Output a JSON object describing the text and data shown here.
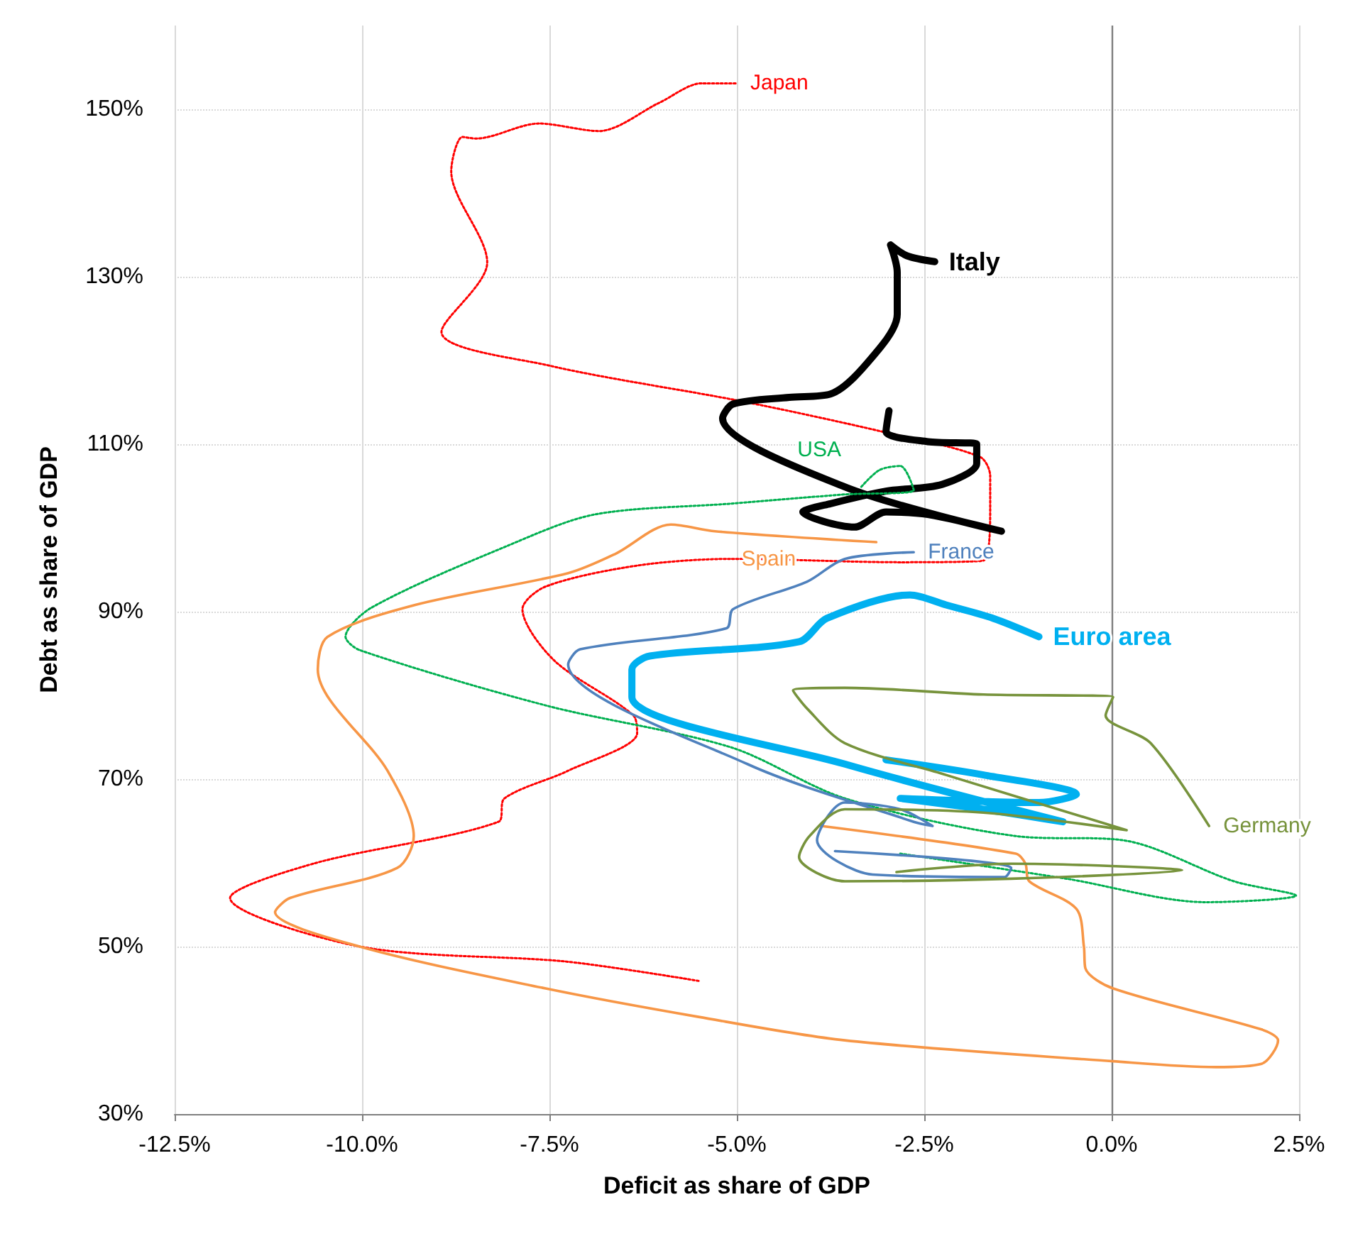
{
  "chart_data": {
    "type": "line",
    "xlabel": "Deficit as share of GDP",
    "ylabel": "Debt as share of GDP",
    "xlim": [
      -12.5,
      2.5
    ],
    "ylim": [
      30,
      160
    ],
    "xticks": [
      {
        "value": -12.5,
        "label": "-12.5%"
      },
      {
        "value": -10,
        "label": "-10.0%"
      },
      {
        "value": -7.5,
        "label": "-7.5%"
      },
      {
        "value": -5,
        "label": "-5.0%"
      },
      {
        "value": -2.5,
        "label": "-2.5%"
      },
      {
        "value": 0,
        "label": "0.0%"
      },
      {
        "value": 2.5,
        "label": "2.5%"
      }
    ],
    "yticks": [
      {
        "value": 30,
        "label": "30%"
      },
      {
        "value": 50,
        "label": "50%"
      },
      {
        "value": 70,
        "label": "70%"
      },
      {
        "value": 90,
        "label": "90%"
      },
      {
        "value": 110,
        "label": "110%"
      },
      {
        "value": 130,
        "label": "130%"
      },
      {
        "value": 150,
        "label": "150%"
      }
    ],
    "grid": true,
    "legend": false,
    "ref_lines": [
      {
        "axis": "x",
        "value": 0,
        "color": "#7f7f7f"
      }
    ],
    "series": [
      {
        "name": "Japan",
        "color": "#ff0000",
        "line_style": "dotted",
        "x": [
          -5.51,
          -7.27,
          -10.03,
          -11.76,
          -10.65,
          -8.18,
          -8.1,
          -7.25,
          -6.33,
          -6.38,
          -7.44,
          -7.86,
          -7.55,
          -6.33,
          -5.08,
          -2.82,
          -1.71,
          -1.62,
          -1.62,
          -1.76,
          -3.06,
          -4.92,
          -7.51,
          -8.94,
          -8.33,
          -8.81,
          -8.66,
          -8.48,
          -7.64,
          -6.84,
          -6.03,
          -5.47,
          -5.01
        ],
        "values": [
          45.9,
          48.2,
          50,
          55.8,
          59.9,
          64.9,
          67.7,
          71,
          75.5,
          77.6,
          84.2,
          90.3,
          93,
          95.5,
          96.3,
          95.9,
          96.1,
          102.4,
          106.2,
          108.5,
          111.5,
          115.1,
          119.4,
          123.4,
          131.7,
          142.6,
          146.7,
          146.5,
          148.3,
          147.4,
          150.8,
          153.1,
          153.1
        ]
      },
      {
        "name": "Italy",
        "color": "#000000",
        "line_style": "solid",
        "x": [
          -2.97,
          -3.01,
          -2.45,
          -1.8,
          -1.8,
          -2.26,
          -3.01,
          -3.75,
          -4.12,
          -3.43,
          -3.01,
          -2.45,
          -1.47,
          -3.56,
          -5.19,
          -5.05,
          -4.3,
          -3.75,
          -3.1,
          -2.86,
          -2.86,
          -2.95,
          -2.73,
          -2.36
        ],
        "values": [
          114,
          111.5,
          110.3,
          110,
          107.7,
          105.2,
          104.4,
          102.9,
          101.9,
          100.1,
          101.9,
          101.6,
          99.6,
          104.9,
          113.1,
          114.8,
          115.6,
          116,
          121.4,
          125.5,
          130.5,
          133.8,
          132.5,
          131.8
        ]
      },
      {
        "name": "USA",
        "color": "#00b050",
        "line_style": "dotted",
        "x": [
          -2.82,
          -0.6,
          1.26,
          2.46,
          1.63,
          0.15,
          -1.28,
          -3.56,
          -5.08,
          -7.55,
          -10.03,
          -10.22,
          -9.87,
          -8.05,
          -6.9,
          -5.08,
          -3.56,
          -2.64,
          -2.82,
          -3.1,
          -3.34
        ],
        "values": [
          61.1,
          58.1,
          55.3,
          56.1,
          57.8,
          62.7,
          63.2,
          67.7,
          73.8,
          78.8,
          85.4,
          87,
          90.5,
          97.9,
          101.6,
          102.9,
          104,
          104.5,
          107.4,
          106.9,
          104.9
        ]
      },
      {
        "name": "Spain",
        "color": "#f79646",
        "line_style": "solid",
        "x": [
          -3.88,
          -1.28,
          -1.15,
          -1.1,
          -0.47,
          -0.37,
          -0.35,
          0.02,
          2,
          2.22,
          2,
          1.39,
          0.02,
          -3.56,
          -5.51,
          -7.55,
          -10.03,
          -11.16,
          -10.96,
          -9.53,
          -9.31,
          -9.66,
          -10.59,
          -10.46,
          -9.29,
          -7.25,
          -6.62,
          -5.88,
          -5.29,
          -3.14
        ],
        "values": [
          64.4,
          61.1,
          59.9,
          57.8,
          54.5,
          50,
          47.4,
          45,
          40.1,
          38.8,
          36,
          35.6,
          36.3,
          38.8,
          41.6,
          45,
          50,
          54.1,
          55.8,
          59.4,
          63.2,
          71,
          83.1,
          87,
          90.8,
          94.6,
          96.9,
          100.4,
          99.6,
          98.3
        ]
      },
      {
        "name": "France",
        "color": "#4f81bd",
        "line_style": "solid",
        "x": [
          -3.69,
          -1.34,
          -1.43,
          -3.19,
          -3.93,
          -3.56,
          -2.82,
          -2.39,
          -2.64,
          -4.86,
          -7.25,
          -7.09,
          -5.14,
          -5.05,
          -4.06,
          -3.56,
          -2.64
        ],
        "values": [
          61.4,
          59.4,
          58.3,
          58.6,
          62.7,
          67.2,
          66.4,
          64.4,
          64.9,
          71.8,
          83.7,
          85.5,
          88,
          90.3,
          93.6,
          96.3,
          97.1
        ]
      },
      {
        "name": "Euro area",
        "color": "#00b0f0",
        "line_style": "solid",
        "x": [
          -3.01,
          -1.71,
          -0.47,
          -0.97,
          -2.82,
          -1.71,
          -0.65,
          -3.56,
          -6.4,
          -6.4,
          -6.16,
          -4.17,
          -3.8,
          -2.69,
          -2.21,
          -1.58,
          -0.97
        ],
        "values": [
          72.3,
          70.5,
          68.2,
          67.2,
          67.7,
          66.4,
          64.9,
          71.8,
          79.8,
          83.1,
          84.7,
          86.4,
          89.2,
          92,
          90.8,
          89.2,
          87
        ]
      },
      {
        "name": "Germany",
        "color": "#77933c",
        "line_style": "solid",
        "x": [
          -2.87,
          -1.34,
          0.94,
          -1.34,
          -3.56,
          -4.17,
          -4.03,
          -3.56,
          -1.71,
          0.2,
          -2.21,
          -3.56,
          -4.06,
          -4.25,
          -3.56,
          -1.71,
          0.02,
          -0.08,
          0.52,
          1.3
        ],
        "values": [
          58.9,
          59.9,
          59.1,
          58.1,
          57.8,
          60.7,
          63.2,
          66.4,
          66,
          63.9,
          70.5,
          74.3,
          78.4,
          80.6,
          80.9,
          80.1,
          79.8,
          77.6,
          74.3,
          64.4
        ]
      }
    ]
  }
}
